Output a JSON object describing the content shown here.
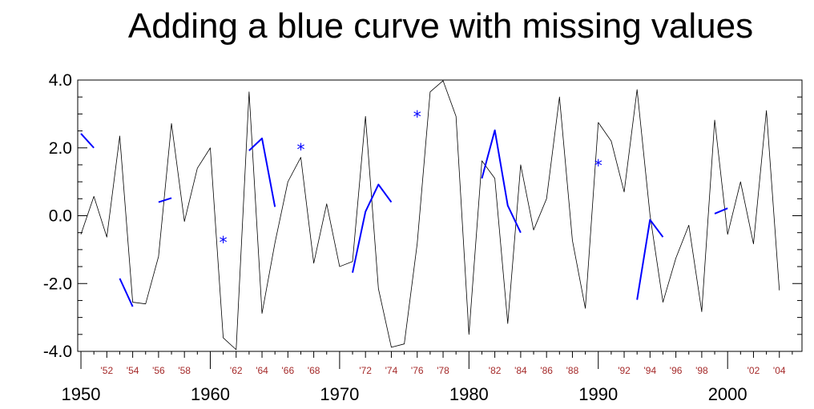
{
  "chart_data": {
    "type": "line",
    "title": "Adding a blue curve with missing values",
    "xlim": [
      1949.75,
      2005.75
    ],
    "ylim": [
      -4.0,
      4.0
    ],
    "grid": false,
    "y_ticks": [
      -4.0,
      -2.0,
      0.0,
      2.0,
      4.0
    ],
    "y_tick_labels": [
      "-4.0",
      "-2.0",
      "0.0",
      "2.0",
      "4.0"
    ],
    "x_major_ticks": [
      1950,
      1960,
      1970,
      1980,
      1990,
      2000
    ],
    "x_major_labels": [
      "1950",
      "1960",
      "1970",
      "1980",
      "1990",
      "2000"
    ],
    "x_minor_ticks": [
      1952,
      1954,
      1956,
      1958,
      1962,
      1964,
      1966,
      1968,
      1972,
      1974,
      1976,
      1978,
      1982,
      1984,
      1986,
      1988,
      1992,
      1994,
      1996,
      1998,
      2002,
      2004
    ],
    "x_minor_labels": [
      "'52",
      "'54",
      "'56",
      "'58",
      "'62",
      "'64",
      "'66",
      "'68",
      "'72",
      "'74",
      "'76",
      "'78",
      "'82",
      "'84",
      "'86",
      "'88",
      "'92",
      "'94",
      "'96",
      "'98",
      "'02",
      "'04"
    ],
    "x": [
      1950,
      1951,
      1952,
      1953,
      1954,
      1955,
      1956,
      1957,
      1958,
      1959,
      1960,
      1961,
      1962,
      1963,
      1964,
      1965,
      1966,
      1967,
      1968,
      1969,
      1970,
      1971,
      1972,
      1973,
      1974,
      1975,
      1976,
      1977,
      1978,
      1979,
      1980,
      1981,
      1982,
      1983,
      1984,
      1985,
      1986,
      1987,
      1988,
      1989,
      1990,
      1991,
      1992,
      1993,
      1994,
      1995,
      1996,
      1997,
      1998,
      1999,
      2000,
      2001,
      2002,
      2003,
      2004
    ],
    "series": [
      {
        "color": "#000000",
        "values": [
          -0.55,
          0.57,
          -0.63,
          2.35,
          -2.55,
          -2.6,
          -1.2,
          2.72,
          -0.17,
          1.4,
          2.0,
          -3.6,
          -3.95,
          3.65,
          -2.88,
          -0.8,
          1.0,
          1.72,
          -1.4,
          0.35,
          -1.5,
          -1.35,
          2.93,
          -2.15,
          -3.88,
          -3.78,
          -0.82,
          3.65,
          3.98,
          2.93,
          -3.5,
          1.62,
          1.1,
          -3.18,
          1.5,
          -0.42,
          0.5,
          3.5,
          -0.73,
          -2.73,
          2.75,
          2.2,
          0.7,
          3.72,
          0.02,
          -2.55,
          -1.25,
          -0.28,
          -2.83,
          2.82,
          -0.55,
          1.0,
          -0.83,
          3.1,
          -2.2
        ]
      },
      {
        "color": "#0000ff",
        "values": [
          2.42,
          2.0,
          null,
          -1.85,
          -2.68,
          null,
          0.4,
          0.52,
          null,
          null,
          null,
          -0.72,
          null,
          1.92,
          2.28,
          0.26,
          null,
          2.02,
          null,
          null,
          null,
          -1.68,
          0.12,
          0.92,
          0.4,
          null,
          2.98,
          null,
          null,
          null,
          null,
          1.1,
          2.52,
          0.3,
          -0.5,
          null,
          null,
          null,
          null,
          null,
          1.55,
          null,
          null,
          -2.48,
          -0.12,
          -0.63,
          null,
          null,
          null,
          0.06,
          0.22,
          null,
          null,
          null,
          null
        ]
      }
    ]
  }
}
